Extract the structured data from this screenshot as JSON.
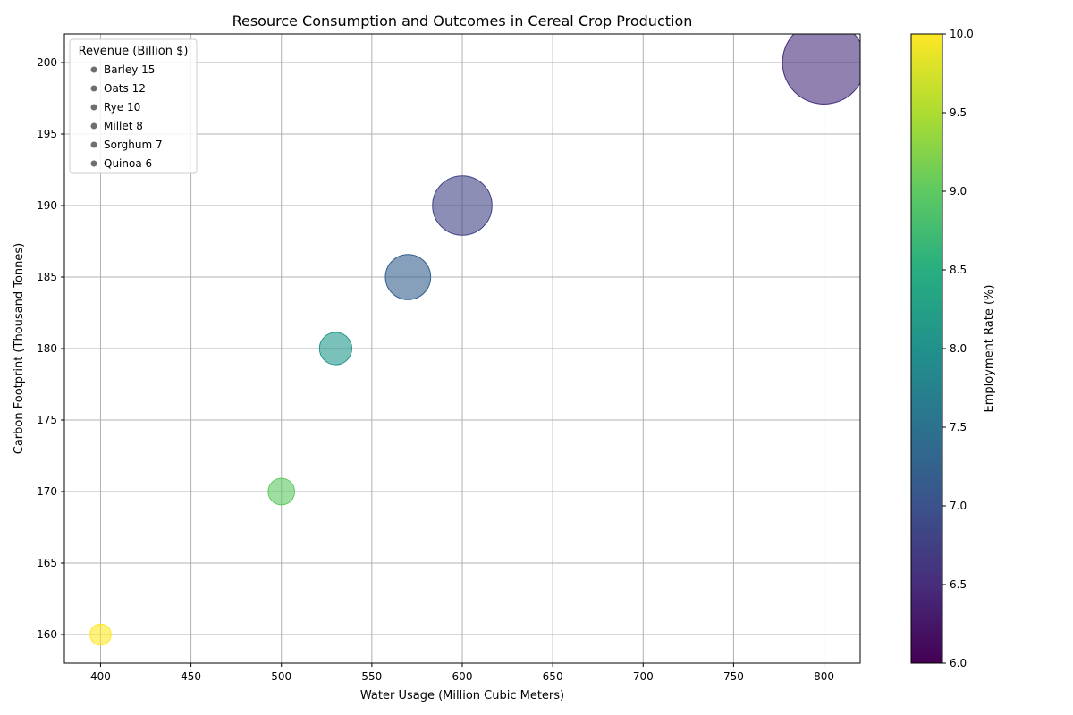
{
  "chart_data": {
    "type": "scatter",
    "title": "Resource Consumption and Outcomes in Cereal Crop Production",
    "xlabel": "Water Usage (Million Cubic Meters)",
    "ylabel": "Carbon Footprint (Thousand Tonnes)",
    "xlim": [
      380,
      820
    ],
    "ylim": [
      158,
      202
    ],
    "xticks": [
      400,
      450,
      500,
      550,
      600,
      650,
      700,
      750,
      800
    ],
    "yticks": [
      160,
      165,
      170,
      175,
      180,
      185,
      190,
      195,
      200
    ],
    "grid": true,
    "size_variable": "Revenue (Billion $)",
    "color_variable": "Employment Rate (%)",
    "points": [
      {
        "label": "Barley",
        "x": 800,
        "y": 200,
        "revenue": 15,
        "employment": 6.5
      },
      {
        "label": "Oats",
        "x": 600,
        "y": 190,
        "revenue": 12,
        "employment": 6.8
      },
      {
        "label": "Rye",
        "x": 570,
        "y": 185,
        "revenue": 10,
        "employment": 7.2
      },
      {
        "label": "Millet",
        "x": 530,
        "y": 180,
        "revenue": 8,
        "employment": 8.1
      },
      {
        "label": "Sorghum",
        "x": 500,
        "y": 170,
        "revenue": 7,
        "employment": 9.0
      },
      {
        "label": "Quinoa",
        "x": 400,
        "y": 160,
        "revenue": 6,
        "employment": 10.0
      }
    ],
    "legend": {
      "title": "Revenue (Billion $)",
      "position": "upper-left",
      "entries": [
        "Barley 15",
        "Oats 12",
        "Rye 10",
        "Millet 8",
        "Sorghum 7",
        "Quinoa 6"
      ]
    },
    "colorbar": {
      "label": "Employment Rate (%)",
      "colormap": "viridis",
      "range": [
        6.0,
        10.0
      ],
      "ticks": [
        "6.0",
        "6.5",
        "7.0",
        "7.5",
        "8.0",
        "8.5",
        "9.0",
        "9.5",
        "10.0"
      ]
    }
  }
}
